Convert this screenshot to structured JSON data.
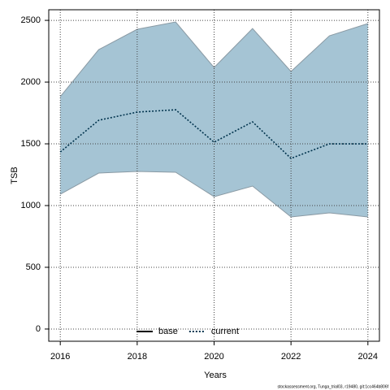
{
  "chart_data": {
    "type": "band-line",
    "x_label": "Years",
    "y_label": "TSB",
    "x": [
      2016,
      2017,
      2018,
      2019,
      2020,
      2021,
      2022,
      2023,
      2024
    ],
    "band": {
      "color": "#a5c4d4",
      "edge_color": "#8a9aa4",
      "lower": [
        1092,
        1263,
        1276,
        1270,
        1072,
        1158,
        908,
        941,
        908
      ],
      "upper": [
        1882,
        2263,
        2428,
        2487,
        2118,
        2434,
        2086,
        2375,
        2474
      ]
    },
    "series": [
      {
        "name": "current",
        "color": "#00334d",
        "dash": "dotted",
        "values": [
          1434,
          1691,
          1757,
          1776,
          1513,
          1678,
          1382,
          1500,
          1500
        ]
      }
    ],
    "legend": [
      {
        "name": "base",
        "color": "#000000",
        "dash": "solid"
      },
      {
        "name": "current",
        "color": "#00334d",
        "dash": "dotted"
      }
    ],
    "xlim": [
      2015.7,
      2024.3
    ],
    "ylim": [
      -99,
      2586
    ],
    "xticks": [
      2016,
      2018,
      2020,
      2022,
      2024
    ],
    "yticks": [
      0,
      500,
      1000,
      1500,
      2000,
      2500
    ],
    "grid": true,
    "footnote": "stockassessment.org, Tunga_trial03, r19480, git:1cc464b806f"
  }
}
